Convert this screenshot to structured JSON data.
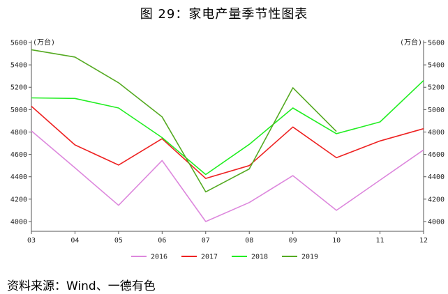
{
  "title": "图 29：家电产量季节性图表",
  "source": "资料来源：Wind、一德有色",
  "chart_data": {
    "type": "line",
    "x": [
      "03",
      "04",
      "05",
      "06",
      "07",
      "08",
      "09",
      "10",
      "11",
      "12"
    ],
    "y_unit_left": "(万台)",
    "y_unit_right": "(万台)",
    "ylim": [
      3950,
      5600
    ],
    "yticks": [
      4000,
      4200,
      4400,
      4600,
      4800,
      5000,
      5200,
      5400,
      5600
    ],
    "grid": false,
    "legend_position": "bottom",
    "series": [
      {
        "name": "2016",
        "color": "#dd88dd",
        "values": [
          4810,
          4480,
          4145,
          4545,
          4000,
          4170,
          4410,
          4100,
          4370,
          4640
        ]
      },
      {
        "name": "2017",
        "color": "#ee2222",
        "values": [
          5030,
          4685,
          4505,
          4740,
          4385,
          4500,
          4845,
          4570,
          4720,
          4830
        ]
      },
      {
        "name": "2018",
        "color": "#22ee22",
        "values": [
          5105,
          5100,
          5015,
          4750,
          4420,
          4690,
          5015,
          4785,
          4890,
          5260
        ]
      },
      {
        "name": "2019",
        "color": "#55aa22",
        "values": [
          5535,
          5470,
          5240,
          4935,
          4265,
          4470,
          5195,
          4805,
          null,
          null
        ]
      }
    ]
  }
}
